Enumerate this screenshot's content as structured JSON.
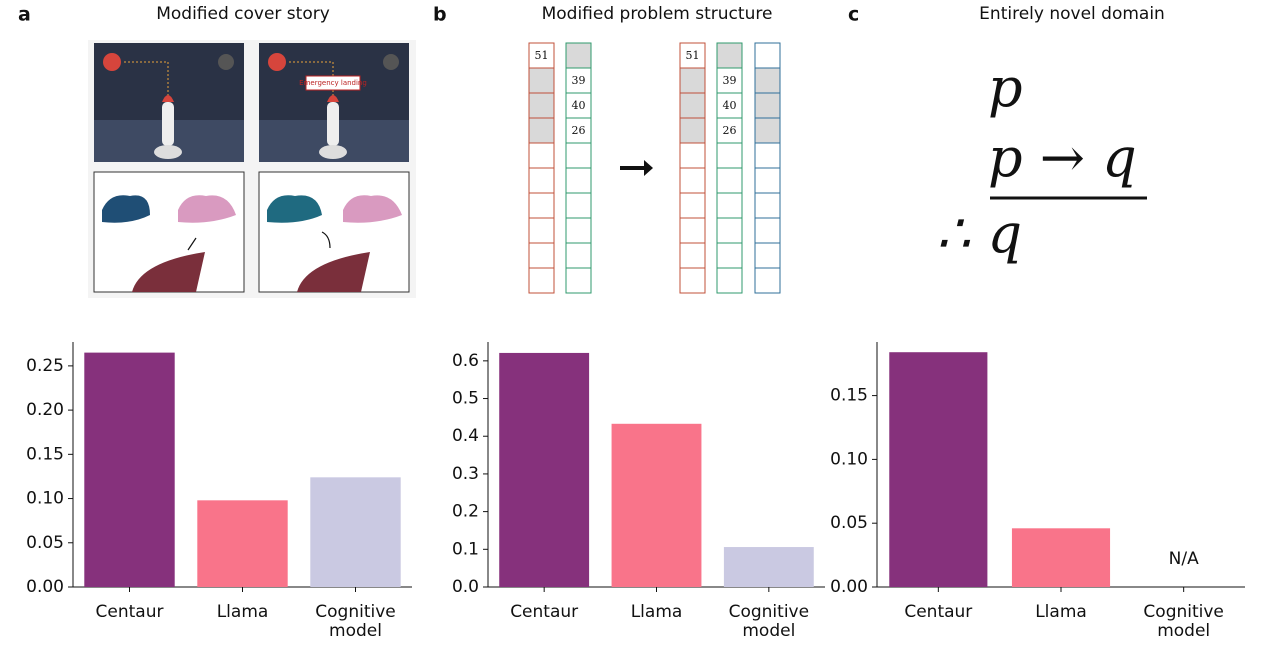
{
  "panels": [
    {
      "label": "a",
      "title": "Modified cover story",
      "callout": "Emergency landing"
    },
    {
      "label": "b",
      "title": "Modified problem structure",
      "before": {
        "first_column": [
          51
        ],
        "second_column": [
          39,
          40,
          26
        ]
      },
      "after": {
        "first_column": [
          51
        ],
        "second_column": [
          39,
          40,
          26
        ]
      }
    },
    {
      "label": "c",
      "title": "Entirely novel domain",
      "premises": [
        "p",
        "p → q"
      ],
      "conclusion": "∴ q"
    }
  ],
  "chart_data": [
    {
      "type": "bar",
      "categories": [
        "Centaur",
        "Llama",
        "Cognitive model"
      ],
      "values": [
        0.265,
        0.098,
        0.124
      ],
      "colors": [
        "#86317c",
        "#f9748a",
        "#cac9e2"
      ],
      "ylim": [
        0,
        0.277
      ],
      "yticks": [
        {
          "value": 0,
          "label": "0.00"
        },
        {
          "value": 0.05,
          "label": "0.05"
        },
        {
          "value": 0.1,
          "label": "0.10"
        },
        {
          "value": 0.15,
          "label": "0.15"
        },
        {
          "value": 0.2,
          "label": "0.20"
        },
        {
          "value": 0.25,
          "label": "0.25"
        }
      ]
    },
    {
      "type": "bar",
      "categories": [
        "Centaur",
        "Llama",
        "Cognitive model"
      ],
      "values": [
        0.621,
        0.433,
        0.106
      ],
      "colors": [
        "#86317c",
        "#f9748a",
        "#cac9e2"
      ],
      "ylim": [
        0,
        0.65
      ],
      "yticks": [
        {
          "value": 0,
          "label": "0.0"
        },
        0.1,
        0.2,
        0.3,
        0.4,
        0.5,
        0.6
      ]
    },
    {
      "type": "bar",
      "categories": [
        "Centaur",
        "Llama",
        "Cognitive model"
      ],
      "values": [
        0.184,
        0.046,
        null
      ],
      "value_labels": [
        null,
        null,
        "N/A"
      ],
      "colors": [
        "#86317c",
        "#f9748a",
        "#cac9e2"
      ],
      "ylim": [
        0,
        0.192
      ],
      "yticks": [
        {
          "value": 0,
          "label": "0.00"
        },
        {
          "value": 0.05,
          "label": "0.05"
        },
        {
          "value": 0.1,
          "label": "0.10"
        },
        {
          "value": 0.15,
          "label": "0.15"
        }
      ]
    }
  ]
}
